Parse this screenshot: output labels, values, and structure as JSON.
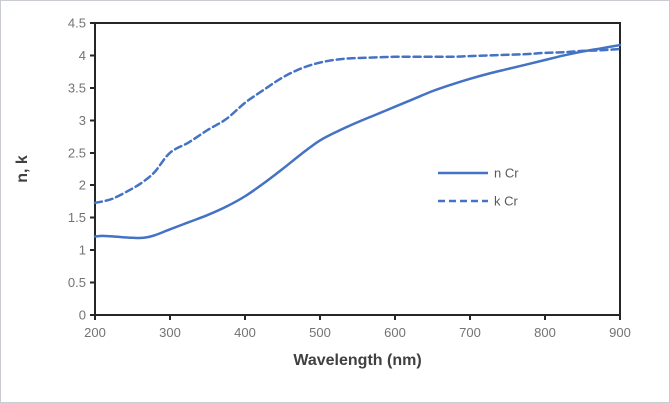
{
  "chart_data": {
    "type": "line",
    "title": "",
    "xlabel": "Wavelength (nm)",
    "ylabel": "n, k",
    "xlim": [
      200,
      900
    ],
    "ylim": [
      0,
      4.5
    ],
    "x_ticks": [
      200,
      300,
      400,
      500,
      600,
      700,
      800,
      900
    ],
    "y_ticks": [
      0,
      0.5,
      1,
      1.5,
      2,
      2.5,
      3,
      3.5,
      4,
      4.5
    ],
    "grid": false,
    "legend_position": "inside-right",
    "x": [
      200,
      210,
      225,
      250,
      265,
      280,
      300,
      325,
      350,
      375,
      400,
      425,
      450,
      475,
      500,
      525,
      550,
      575,
      600,
      625,
      650,
      675,
      700,
      725,
      750,
      775,
      800,
      825,
      850,
      875,
      900
    ],
    "series": [
      {
        "name": "n Cr",
        "style": "solid",
        "color": "#4472c4",
        "values": [
          1.21,
          1.22,
          1.21,
          1.19,
          1.19,
          1.23,
          1.32,
          1.43,
          1.54,
          1.67,
          1.83,
          2.03,
          2.25,
          2.48,
          2.69,
          2.84,
          2.97,
          3.09,
          3.21,
          3.33,
          3.45,
          3.55,
          3.64,
          3.72,
          3.79,
          3.86,
          3.93,
          4.0,
          4.06,
          4.11,
          4.16
        ]
      },
      {
        "name": "k Cr",
        "style": "dashed",
        "color": "#4472c4",
        "values": [
          1.73,
          1.75,
          1.8,
          1.95,
          2.06,
          2.21,
          2.5,
          2.66,
          2.85,
          3.02,
          3.27,
          3.47,
          3.66,
          3.8,
          3.89,
          3.94,
          3.96,
          3.97,
          3.98,
          3.98,
          3.98,
          3.98,
          3.99,
          4.0,
          4.01,
          4.02,
          4.04,
          4.05,
          4.07,
          4.08,
          4.1
        ]
      }
    ]
  },
  "style": {
    "axis_color": "#262626",
    "tick_label_color": "#737373",
    "axis_title_color": "#404040",
    "legend_label_color": "#595959",
    "background": "#ffffff"
  }
}
